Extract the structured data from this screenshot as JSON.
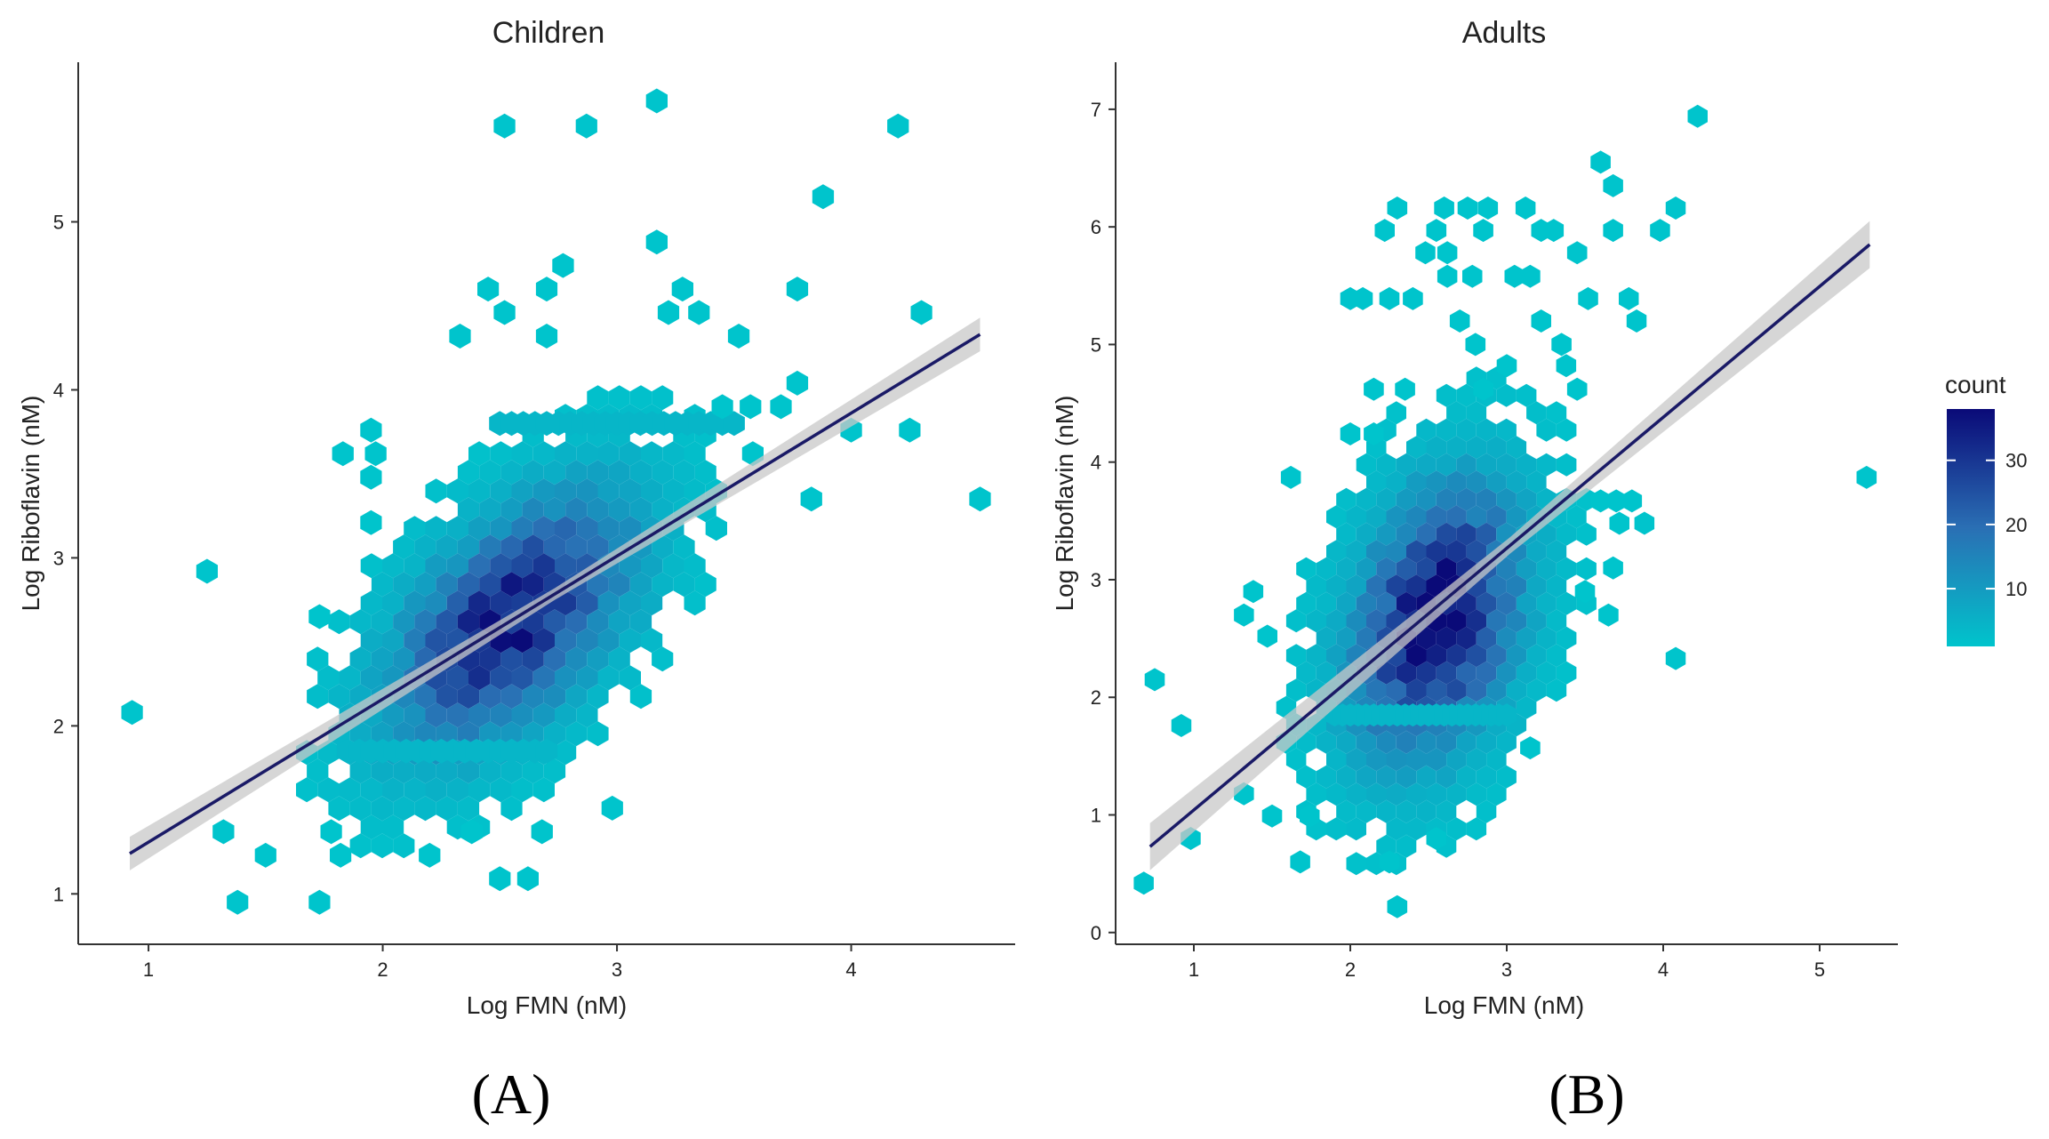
{
  "figure": {
    "panel_labels": [
      "(A)",
      "(B)"
    ],
    "legend": {
      "title": "count",
      "ticks": [
        10,
        20,
        30
      ],
      "range": [
        1,
        38
      ],
      "colors": {
        "low": "#00c4cc",
        "high": "#0a0a78"
      }
    },
    "fit_line_color": "#1a1a66",
    "band_color": "#c8c8c8"
  },
  "chart_data": [
    {
      "type": "hexbin",
      "title": "Children",
      "xlabel": "Log FMN (nM)",
      "ylabel": "Log Riboflavin (nM)",
      "xlim": [
        0.7,
        4.7
      ],
      "ylim": [
        0.7,
        5.95
      ],
      "xticks": [
        1,
        2,
        3,
        4
      ],
      "yticks": [
        1,
        2,
        3,
        4,
        5
      ],
      "fit": {
        "x0": 0.92,
        "y0": 1.24,
        "x1": 4.55,
        "y1": 4.33,
        "band": 0.1
      },
      "hexagons": [
        {
          "x": 2.5,
          "y": 3.8,
          "count": 4
        },
        {
          "x": 2.55,
          "y": 3.8,
          "count": 4
        },
        {
          "x": 2.6,
          "y": 3.8,
          "count": 4
        },
        {
          "x": 2.65,
          "y": 3.8,
          "count": 4
        },
        {
          "x": 2.7,
          "y": 3.8,
          "count": 4
        },
        {
          "x": 2.75,
          "y": 3.8,
          "count": 4
        },
        {
          "x": 2.8,
          "y": 3.8,
          "count": 4
        },
        {
          "x": 2.85,
          "y": 3.8,
          "count": 4
        },
        {
          "x": 2.9,
          "y": 3.8,
          "count": 4
        },
        {
          "x": 2.95,
          "y": 3.8,
          "count": 4
        },
        {
          "x": 3.0,
          "y": 3.8,
          "count": 4
        },
        {
          "x": 3.05,
          "y": 3.8,
          "count": 4
        },
        {
          "x": 3.1,
          "y": 3.8,
          "count": 4
        },
        {
          "x": 3.15,
          "y": 3.8,
          "count": 4
        },
        {
          "x": 3.2,
          "y": 3.8,
          "count": 4
        },
        {
          "x": 3.25,
          "y": 3.8,
          "count": 4
        },
        {
          "x": 3.3,
          "y": 3.8,
          "count": 4
        },
        {
          "x": 3.35,
          "y": 3.8,
          "count": 4
        },
        {
          "x": 3.4,
          "y": 3.8,
          "count": 4
        },
        {
          "x": 3.45,
          "y": 3.8,
          "count": 4
        },
        {
          "x": 3.5,
          "y": 3.8,
          "count": 4
        },
        {
          "x": 1.85,
          "y": 1.85,
          "count": 4
        },
        {
          "x": 1.9,
          "y": 1.85,
          "count": 4
        },
        {
          "x": 1.95,
          "y": 1.85,
          "count": 4
        },
        {
          "x": 2.0,
          "y": 1.85,
          "count": 4
        },
        {
          "x": 2.05,
          "y": 1.85,
          "count": 4
        },
        {
          "x": 2.1,
          "y": 1.85,
          "count": 4
        },
        {
          "x": 2.15,
          "y": 1.85,
          "count": 4
        },
        {
          "x": 2.2,
          "y": 1.85,
          "count": 4
        },
        {
          "x": 2.25,
          "y": 1.85,
          "count": 4
        },
        {
          "x": 2.3,
          "y": 1.85,
          "count": 4
        },
        {
          "x": 2.35,
          "y": 1.85,
          "count": 4
        },
        {
          "x": 2.4,
          "y": 1.85,
          "count": 4
        },
        {
          "x": 2.45,
          "y": 1.85,
          "count": 4
        },
        {
          "x": 2.5,
          "y": 1.85,
          "count": 4
        },
        {
          "x": 2.55,
          "y": 1.85,
          "count": 4
        },
        {
          "x": 2.6,
          "y": 1.85,
          "count": 4
        },
        {
          "x": 2.65,
          "y": 1.85,
          "count": 4
        },
        {
          "x": 2.7,
          "y": 1.85,
          "count": 4
        },
        {
          "x": 0.93,
          "y": 2.08,
          "count": 1
        },
        {
          "x": 1.25,
          "y": 2.92,
          "count": 1
        },
        {
          "x": 1.32,
          "y": 1.37,
          "count": 1
        },
        {
          "x": 1.38,
          "y": 0.95,
          "count": 1
        },
        {
          "x": 1.5,
          "y": 1.23,
          "count": 1
        },
        {
          "x": 1.73,
          "y": 0.95,
          "count": 1
        },
        {
          "x": 1.78,
          "y": 1.37,
          "count": 1
        },
        {
          "x": 1.82,
          "y": 1.23,
          "count": 1
        },
        {
          "x": 2.2,
          "y": 1.23,
          "count": 1
        },
        {
          "x": 2.38,
          "y": 1.37,
          "count": 1
        },
        {
          "x": 2.5,
          "y": 1.09,
          "count": 1
        },
        {
          "x": 2.62,
          "y": 1.09,
          "count": 1
        },
        {
          "x": 2.68,
          "y": 1.37,
          "count": 1
        },
        {
          "x": 2.98,
          "y": 1.51,
          "count": 1
        },
        {
          "x": 2.52,
          "y": 5.57,
          "count": 1
        },
        {
          "x": 2.87,
          "y": 5.57,
          "count": 1
        },
        {
          "x": 3.17,
          "y": 5.72,
          "count": 1
        },
        {
          "x": 4.2,
          "y": 5.57,
          "count": 1
        },
        {
          "x": 3.88,
          "y": 5.15,
          "count": 1
        },
        {
          "x": 3.17,
          "y": 4.88,
          "count": 1
        },
        {
          "x": 2.45,
          "y": 4.6,
          "count": 1
        },
        {
          "x": 2.52,
          "y": 4.46,
          "count": 1
        },
        {
          "x": 2.7,
          "y": 4.6,
          "count": 1
        },
        {
          "x": 2.77,
          "y": 4.74,
          "count": 1
        },
        {
          "x": 2.33,
          "y": 4.32,
          "count": 1
        },
        {
          "x": 2.7,
          "y": 4.32,
          "count": 1
        },
        {
          "x": 3.28,
          "y": 4.6,
          "count": 1
        },
        {
          "x": 3.22,
          "y": 4.46,
          "count": 1
        },
        {
          "x": 3.35,
          "y": 4.46,
          "count": 1
        },
        {
          "x": 3.52,
          "y": 4.32,
          "count": 1
        },
        {
          "x": 3.77,
          "y": 4.6,
          "count": 1
        },
        {
          "x": 4.3,
          "y": 4.46,
          "count": 1
        },
        {
          "x": 3.45,
          "y": 3.9,
          "count": 1
        },
        {
          "x": 3.57,
          "y": 3.9,
          "count": 1
        },
        {
          "x": 3.7,
          "y": 3.9,
          "count": 1
        },
        {
          "x": 3.77,
          "y": 4.04,
          "count": 1
        },
        {
          "x": 4.0,
          "y": 3.76,
          "count": 1
        },
        {
          "x": 4.25,
          "y": 3.76,
          "count": 1
        },
        {
          "x": 4.55,
          "y": 3.35,
          "count": 1
        },
        {
          "x": 3.83,
          "y": 3.35,
          "count": 1
        },
        {
          "x": 3.58,
          "y": 3.62,
          "count": 1
        },
        {
          "x": 1.83,
          "y": 3.62,
          "count": 1
        },
        {
          "x": 1.97,
          "y": 3.62,
          "count": 1
        },
        {
          "x": 1.95,
          "y": 3.76,
          "count": 1
        },
        {
          "x": 1.95,
          "y": 3.21,
          "count": 1
        },
        {
          "x": 1.95,
          "y": 3.48,
          "count": 1
        },
        {
          "x": 1.73,
          "y": 2.65,
          "count": 1
        }
      ],
      "core": {
        "cx": 2.55,
        "cy": 2.62,
        "sx": 0.42,
        "sy": 0.62,
        "rho": 0.55,
        "peak": 35,
        "threshold": 0.09
      }
    },
    {
      "type": "hexbin",
      "title": "Adults",
      "xlabel": "Log FMN (nM)",
      "ylabel": "Log Riboflavin (nM)",
      "xlim": [
        0.5,
        5.5
      ],
      "ylim": [
        -0.1,
        7.4
      ],
      "xticks": [
        1,
        2,
        3,
        4,
        5
      ],
      "yticks": [
        0,
        1,
        2,
        3,
        4,
        5,
        6,
        7
      ],
      "fit": {
        "x0": 0.72,
        "y0": 0.73,
        "x1": 5.32,
        "y1": 5.85,
        "band": 0.2
      },
      "hexagons": [
        {
          "x": 1.9,
          "y": 1.85,
          "count": 4
        },
        {
          "x": 1.95,
          "y": 1.85,
          "count": 4
        },
        {
          "x": 2.0,
          "y": 1.85,
          "count": 4
        },
        {
          "x": 2.05,
          "y": 1.85,
          "count": 4
        },
        {
          "x": 2.1,
          "y": 1.85,
          "count": 4
        },
        {
          "x": 2.15,
          "y": 1.85,
          "count": 4
        },
        {
          "x": 2.2,
          "y": 1.85,
          "count": 4
        },
        {
          "x": 2.25,
          "y": 1.85,
          "count": 4
        },
        {
          "x": 2.3,
          "y": 1.85,
          "count": 4
        },
        {
          "x": 2.35,
          "y": 1.85,
          "count": 4
        },
        {
          "x": 2.4,
          "y": 1.85,
          "count": 4
        },
        {
          "x": 2.45,
          "y": 1.85,
          "count": 4
        },
        {
          "x": 2.5,
          "y": 1.85,
          "count": 4
        },
        {
          "x": 2.55,
          "y": 1.85,
          "count": 4
        },
        {
          "x": 2.6,
          "y": 1.85,
          "count": 4
        },
        {
          "x": 2.65,
          "y": 1.85,
          "count": 4
        },
        {
          "x": 2.7,
          "y": 1.85,
          "count": 4
        },
        {
          "x": 2.75,
          "y": 1.85,
          "count": 4
        },
        {
          "x": 2.8,
          "y": 1.85,
          "count": 4
        },
        {
          "x": 2.85,
          "y": 1.85,
          "count": 4
        },
        {
          "x": 2.9,
          "y": 1.85,
          "count": 4
        },
        {
          "x": 2.95,
          "y": 1.85,
          "count": 4
        },
        {
          "x": 3.0,
          "y": 1.85,
          "count": 4
        },
        {
          "x": 0.68,
          "y": 0.42,
          "count": 1
        },
        {
          "x": 0.75,
          "y": 2.15,
          "count": 1
        },
        {
          "x": 0.92,
          "y": 1.76,
          "count": 1
        },
        {
          "x": 0.98,
          "y": 0.8,
          "count": 1
        },
        {
          "x": 1.68,
          "y": 0.6,
          "count": 1
        },
        {
          "x": 2.25,
          "y": 0.6,
          "count": 1
        },
        {
          "x": 2.3,
          "y": 0.22,
          "count": 1
        },
        {
          "x": 2.55,
          "y": 0.8,
          "count": 1
        },
        {
          "x": 1.62,
          "y": 3.87,
          "count": 1
        },
        {
          "x": 1.32,
          "y": 2.7,
          "count": 1
        },
        {
          "x": 1.38,
          "y": 2.9,
          "count": 1
        },
        {
          "x": 1.47,
          "y": 2.52,
          "count": 1
        },
        {
          "x": 1.32,
          "y": 1.18,
          "count": 1
        },
        {
          "x": 1.5,
          "y": 0.99,
          "count": 1
        },
        {
          "x": 1.74,
          "y": 0.99,
          "count": 1
        },
        {
          "x": 4.22,
          "y": 6.94,
          "count": 1
        },
        {
          "x": 3.6,
          "y": 6.55,
          "count": 1
        },
        {
          "x": 3.68,
          "y": 6.35,
          "count": 1
        },
        {
          "x": 4.08,
          "y": 6.16,
          "count": 1
        },
        {
          "x": 3.98,
          "y": 5.97,
          "count": 1
        },
        {
          "x": 3.68,
          "y": 5.97,
          "count": 1
        },
        {
          "x": 3.45,
          "y": 5.78,
          "count": 1
        },
        {
          "x": 3.52,
          "y": 5.39,
          "count": 1
        },
        {
          "x": 3.78,
          "y": 5.39,
          "count": 1
        },
        {
          "x": 3.83,
          "y": 5.2,
          "count": 1
        },
        {
          "x": 2.3,
          "y": 6.16,
          "count": 1
        },
        {
          "x": 2.22,
          "y": 5.97,
          "count": 1
        },
        {
          "x": 2.6,
          "y": 6.16,
          "count": 1
        },
        {
          "x": 2.75,
          "y": 6.16,
          "count": 1
        },
        {
          "x": 2.88,
          "y": 6.16,
          "count": 1
        },
        {
          "x": 3.12,
          "y": 6.16,
          "count": 1
        },
        {
          "x": 3.22,
          "y": 5.97,
          "count": 1
        },
        {
          "x": 3.3,
          "y": 5.97,
          "count": 1
        },
        {
          "x": 2.55,
          "y": 5.97,
          "count": 1
        },
        {
          "x": 2.48,
          "y": 5.78,
          "count": 1
        },
        {
          "x": 2.62,
          "y": 5.78,
          "count": 1
        },
        {
          "x": 2.85,
          "y": 5.97,
          "count": 1
        },
        {
          "x": 2.0,
          "y": 5.39,
          "count": 1
        },
        {
          "x": 2.08,
          "y": 5.39,
          "count": 1
        },
        {
          "x": 2.25,
          "y": 5.39,
          "count": 1
        },
        {
          "x": 2.4,
          "y": 5.39,
          "count": 1
        },
        {
          "x": 2.62,
          "y": 5.58,
          "count": 1
        },
        {
          "x": 2.78,
          "y": 5.58,
          "count": 1
        },
        {
          "x": 3.05,
          "y": 5.58,
          "count": 1
        },
        {
          "x": 3.15,
          "y": 5.58,
          "count": 1
        },
        {
          "x": 2.0,
          "y": 4.24,
          "count": 1
        },
        {
          "x": 2.15,
          "y": 4.24,
          "count": 1
        },
        {
          "x": 3.22,
          "y": 5.2,
          "count": 1
        },
        {
          "x": 3.35,
          "y": 5.0,
          "count": 1
        },
        {
          "x": 3.6,
          "y": 3.67,
          "count": 1
        },
        {
          "x": 3.7,
          "y": 3.67,
          "count": 1
        },
        {
          "x": 3.8,
          "y": 3.67,
          "count": 1
        },
        {
          "x": 3.88,
          "y": 3.48,
          "count": 1
        },
        {
          "x": 3.72,
          "y": 3.48,
          "count": 1
        },
        {
          "x": 3.68,
          "y": 3.1,
          "count": 1
        },
        {
          "x": 3.5,
          "y": 2.9,
          "count": 1
        },
        {
          "x": 3.65,
          "y": 2.7,
          "count": 1
        },
        {
          "x": 3.15,
          "y": 1.57,
          "count": 1
        },
        {
          "x": 4.08,
          "y": 2.33,
          "count": 1
        },
        {
          "x": 5.3,
          "y": 3.87,
          "count": 1
        },
        {
          "x": 3.38,
          "y": 4.82,
          "count": 1
        },
        {
          "x": 3.45,
          "y": 4.62,
          "count": 1
        },
        {
          "x": 3.0,
          "y": 4.82,
          "count": 1
        },
        {
          "x": 2.15,
          "y": 4.62,
          "count": 1
        },
        {
          "x": 2.35,
          "y": 4.62,
          "count": 1
        },
        {
          "x": 2.85,
          "y": 4.62,
          "count": 1
        },
        {
          "x": 2.7,
          "y": 5.2,
          "count": 1
        },
        {
          "x": 2.8,
          "y": 5.0,
          "count": 1
        }
      ],
      "core": {
        "cx": 2.55,
        "cy": 2.65,
        "sx": 0.44,
        "sy": 0.95,
        "rho": 0.3,
        "peak": 38,
        "threshold": 0.08
      }
    }
  ]
}
